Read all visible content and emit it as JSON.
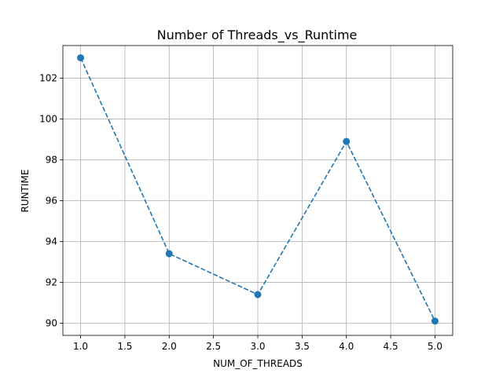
{
  "chart_data": {
    "type": "line",
    "title": "Number of Threads_vs_Runtime",
    "xlabel": "NUM_OF_THREADS",
    "ylabel": "RUNTIME",
    "xlim": [
      0.8,
      5.2
    ],
    "ylim": [
      89.4,
      103.6
    ],
    "x_ticks": [
      1.0,
      1.5,
      2.0,
      2.5,
      3.0,
      3.5,
      4.0,
      4.5,
      5.0
    ],
    "x_tick_labels": [
      "1.0",
      "1.5",
      "2.0",
      "2.5",
      "3.0",
      "3.5",
      "4.0",
      "4.5",
      "5.0"
    ],
    "y_ticks": [
      90,
      92,
      94,
      96,
      98,
      100,
      102
    ],
    "y_tick_labels": [
      "90",
      "92",
      "94",
      "96",
      "98",
      "100",
      "102"
    ],
    "grid": true,
    "line_style": "dashed",
    "markers": true,
    "color": "#1f77b4",
    "series": [
      {
        "x": [
          1,
          2,
          3,
          4,
          5
        ],
        "y": [
          103.0,
          93.4,
          91.4,
          98.9,
          90.1
        ]
      }
    ]
  }
}
